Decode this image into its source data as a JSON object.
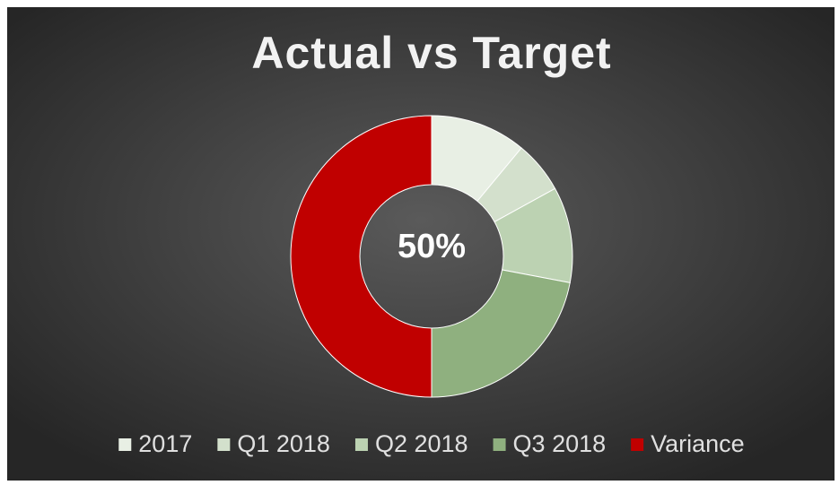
{
  "chart_data": {
    "type": "donut",
    "title": "Actual vs Target",
    "center_label": "50%",
    "categories": [
      "2017",
      "Q1 2018",
      "Q2 2018",
      "Q3 2018",
      "Variance"
    ],
    "values": [
      11,
      6,
      11,
      22,
      50
    ],
    "colors": [
      "#e8efe4",
      "#d3e0cc",
      "#bcd2b2",
      "#8fb07f",
      "#c00000"
    ],
    "legend": "bottom"
  }
}
